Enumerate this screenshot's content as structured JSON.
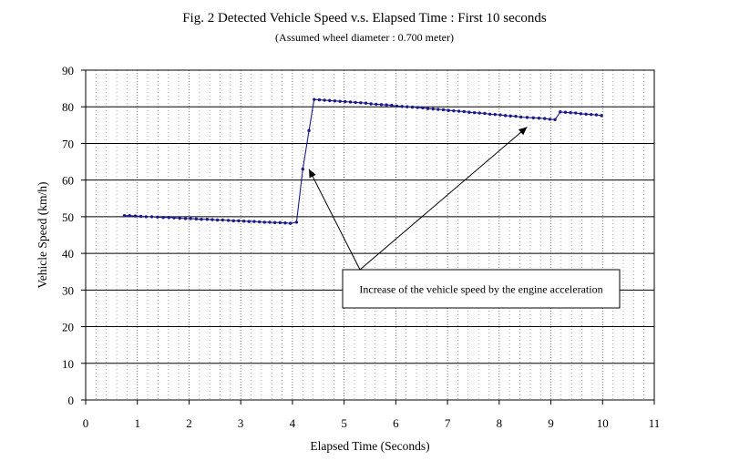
{
  "chart_data": {
    "type": "line",
    "title": "Fig. 2 Detected Vehicle Speed v.s. Elapsed Time : First 10 seconds",
    "subtitle": "(Assumed wheel diameter : 0.700 meter)",
    "xlabel": "Elapsed Time (Seconds)",
    "ylabel": "Vehicle Speed (km/h)",
    "xlim": [
      0,
      11
    ],
    "ylim": [
      0,
      90
    ],
    "x_ticks": [
      0,
      1,
      2,
      3,
      4,
      5,
      6,
      7,
      8,
      9,
      10,
      11
    ],
    "y_ticks": [
      0,
      10,
      20,
      30,
      40,
      50,
      60,
      70,
      80,
      90
    ],
    "grid": {
      "horizontal": "solid",
      "vertical": "dotted"
    },
    "legend": "none",
    "colors": {
      "series": "#1a1a8c",
      "grid_major": "#000000",
      "grid_minor": "#808080"
    },
    "series": [
      {
        "x": [
          0.75,
          0.85,
          0.96,
          1.07,
          1.17,
          1.28,
          1.39,
          1.5,
          1.61,
          1.71,
          1.82,
          1.93,
          2.03,
          2.14,
          2.24,
          2.35,
          2.45,
          2.55,
          2.65,
          2.76,
          2.86,
          2.96,
          3.06,
          3.16,
          3.26,
          3.36,
          3.46,
          3.56,
          3.66,
          3.76,
          3.86,
          3.96,
          4.08,
          4.2,
          4.32,
          4.42,
          4.52,
          4.62,
          4.72,
          4.82,
          4.92,
          5.02,
          5.12,
          5.22,
          5.32,
          5.42,
          5.52,
          5.62,
          5.72,
          5.82,
          5.92,
          6.02,
          6.12,
          6.22,
          6.32,
          6.42,
          6.52,
          6.62,
          6.72,
          6.82,
          6.92,
          7.02,
          7.12,
          7.22,
          7.32,
          7.42,
          7.52,
          7.62,
          7.72,
          7.82,
          7.92,
          8.02,
          8.12,
          8.22,
          8.32,
          8.42,
          8.54,
          8.66,
          8.77,
          8.88,
          8.98,
          9.08,
          9.18,
          9.28,
          9.38,
          9.48,
          9.58,
          9.68,
          9.78,
          9.88,
          9.98
        ],
        "y": [
          50.3,
          50.3,
          50.2,
          50.1,
          50.0,
          50.0,
          49.9,
          49.8,
          49.8,
          49.7,
          49.6,
          49.5,
          49.5,
          49.4,
          49.3,
          49.3,
          49.2,
          49.1,
          49.1,
          49.0,
          48.9,
          48.9,
          48.8,
          48.7,
          48.7,
          48.6,
          48.5,
          48.5,
          48.4,
          48.4,
          48.3,
          48.2,
          48.5,
          63.0,
          73.5,
          82.0,
          81.9,
          81.8,
          81.7,
          81.6,
          81.5,
          81.4,
          81.3,
          81.2,
          81.1,
          81.0,
          80.8,
          80.7,
          80.6,
          80.5,
          80.4,
          80.2,
          80.1,
          80.0,
          79.9,
          79.8,
          79.7,
          79.5,
          79.4,
          79.3,
          79.2,
          79.0,
          78.9,
          78.8,
          78.7,
          78.5,
          78.4,
          78.3,
          78.2,
          78.0,
          77.9,
          77.8,
          77.6,
          77.5,
          77.4,
          77.2,
          77.1,
          77.0,
          76.9,
          76.8,
          76.6,
          76.5,
          78.6,
          78.5,
          78.4,
          78.3,
          78.1,
          78.0,
          77.9,
          77.8,
          77.6
        ]
      }
    ],
    "annotations": [
      {
        "text": "Increase of the vehicle speed by the engine acceleration",
        "arrow_targets": [
          [
            4.32,
            63.0
          ],
          [
            8.54,
            74.5
          ]
        ]
      }
    ]
  }
}
